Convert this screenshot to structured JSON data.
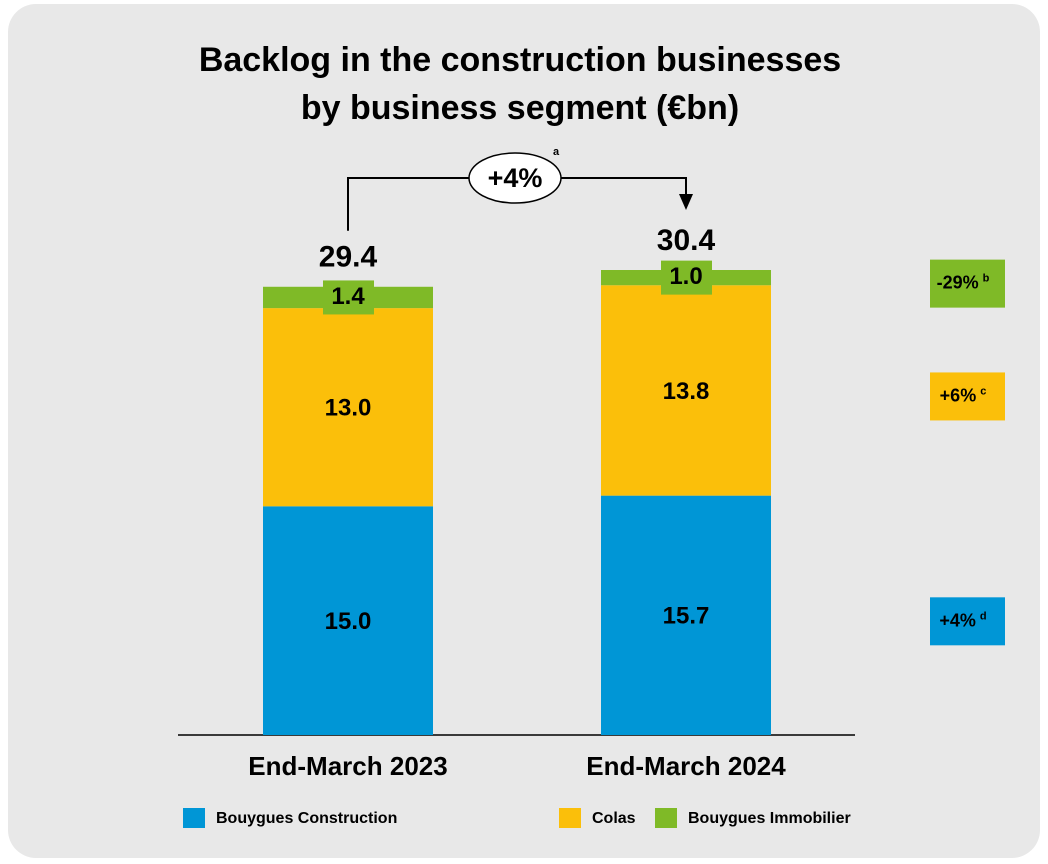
{
  "chart_data": {
    "type": "stacked_bar",
    "title": [
      "Backlog in the construction businesses",
      "by business segment (€bn)"
    ],
    "categories": [
      "End-March 2023",
      "End-March 2024"
    ],
    "series": [
      {
        "name": "Bouygues Construction",
        "color": "#0096d6",
        "values": [
          15.0,
          15.7
        ],
        "value_labels": [
          "15.0",
          "15.7"
        ],
        "change": "+4%",
        "change_note": "d"
      },
      {
        "name": "Colas",
        "color": "#fbbf0a",
        "values": [
          13.0,
          13.8
        ],
        "value_labels": [
          "13.0",
          "13.8"
        ],
        "change": "+6%",
        "change_note": "c"
      },
      {
        "name": "Bouygues Immobilier",
        "color": "#7fba27",
        "values": [
          1.4,
          1.0
        ],
        "value_labels": [
          "1.4",
          "1.0"
        ],
        "change": "-29%",
        "change_note": "b"
      }
    ],
    "totals": [
      29.4,
      30.4
    ],
    "total_change": "+4%",
    "total_change_note": "a"
  }
}
